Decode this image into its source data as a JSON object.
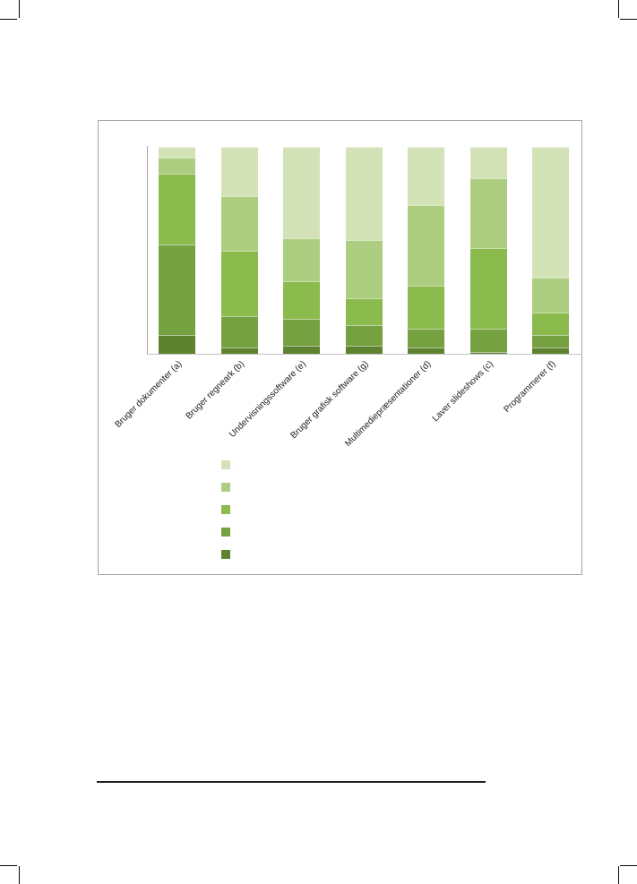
{
  "page": {
    "background": "#ffffff",
    "crop_mark_color": "#0a0a0a",
    "footnote_rule_color": "#1c1c1c"
  },
  "chart_frame": {
    "border_color": "#a6a6a6",
    "background": "#ffffff"
  },
  "chart_data": {
    "type": "bar",
    "stacked": true,
    "percent_stacked": true,
    "title": "",
    "xlabel": "",
    "ylabel": "",
    "y_axis": {
      "ticks_visible": false,
      "range_percent": [
        0,
        100
      ]
    },
    "grid": false,
    "axis_colors": {
      "y_axis_line": "#a6a6a6",
      "x_axis_line": "#c3c3c3"
    },
    "categories": [
      "Bruger dokumenter (a)",
      "Bruger regneark (b)",
      "Undervisningssoftware (e)",
      "Bruger grafisk software (g)",
      "Multimediepræsentationer (d)",
      "Laver slideshows (c)",
      "Programmerer (f)"
    ],
    "series": [
      {
        "label": "",
        "stack_position": "bottom",
        "color": "#5E8230",
        "values": [
          9,
          3,
          4,
          4,
          3,
          1,
          3
        ]
      },
      {
        "label": "",
        "stack_position": "2",
        "color": "#76A140",
        "values": [
          44,
          15,
          13,
          10,
          9,
          11,
          6
        ]
      },
      {
        "label": "",
        "stack_position": "3",
        "color": "#8BBA4D",
        "values": [
          34,
          32,
          18,
          13,
          21,
          39,
          11
        ]
      },
      {
        "label": "",
        "stack_position": "4",
        "color": "#ADCD81",
        "values": [
          8,
          26,
          21,
          28,
          39,
          34,
          17
        ]
      },
      {
        "label": "",
        "stack_position": "top",
        "color": "#D4E2B8",
        "values": [
          5,
          24,
          44,
          45,
          28,
          15,
          63
        ]
      }
    ],
    "legend": {
      "position": "below-plot-left",
      "orientation": "vertical",
      "labels_visible": false,
      "swatch_colors_top_to_bottom": [
        "#D4E2B8",
        "#ADCD81",
        "#8BBA4D",
        "#76A140",
        "#5E8230"
      ]
    }
  }
}
